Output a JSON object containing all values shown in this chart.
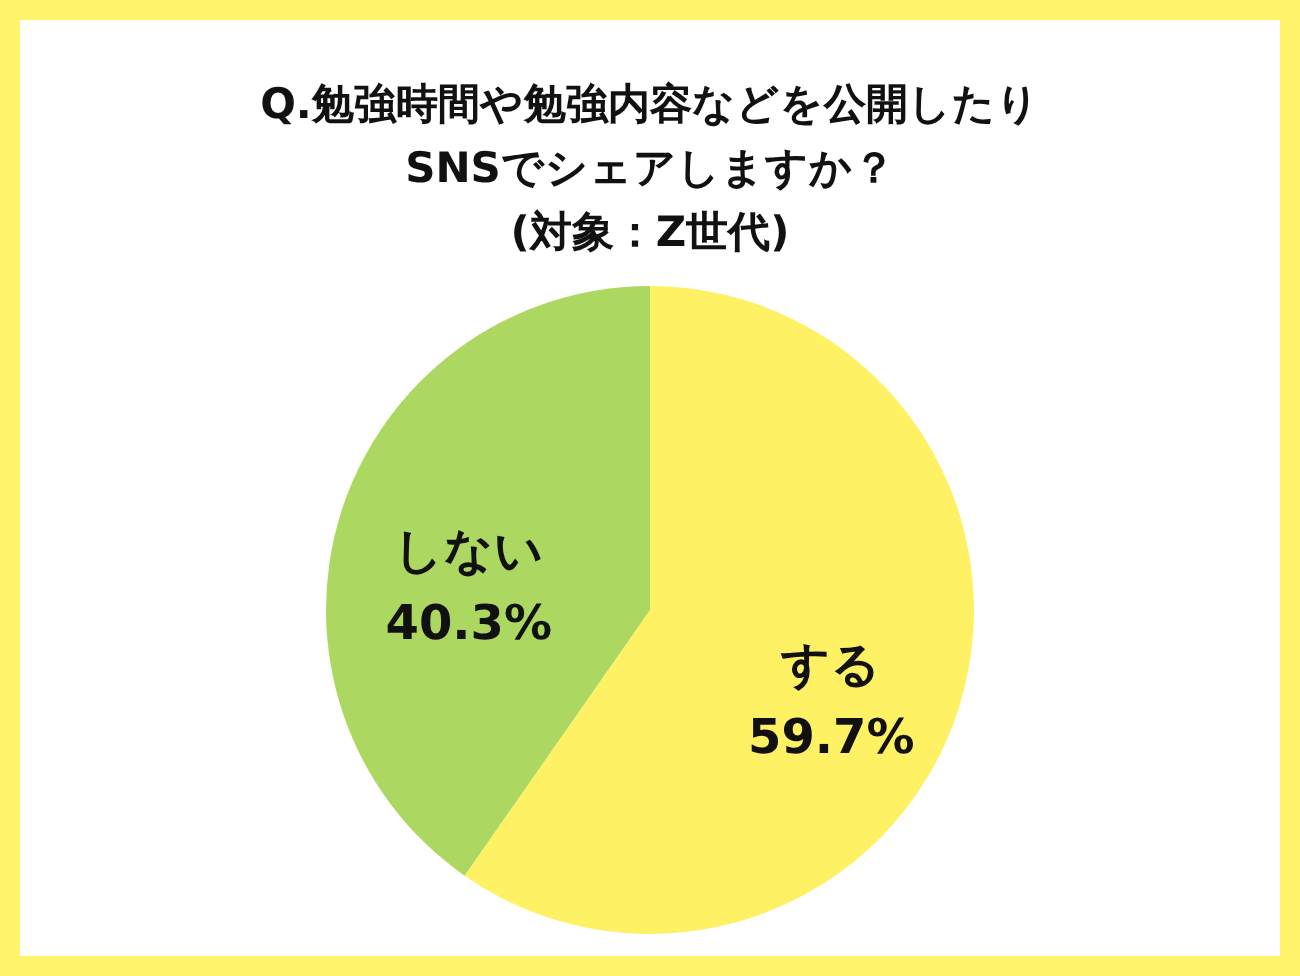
{
  "chart_data": {
    "type": "pie",
    "title": "Q.勉強時間や勉強内容などを公開したり\nSNSでシェアしますか？\n(対象：Z世代)",
    "categories": [
      "する",
      "しない"
    ],
    "values": [
      59.7,
      40.3
    ],
    "colors": [
      "#fef264",
      "#acd862"
    ],
    "value_labels": [
      "59.7%",
      "40.3%"
    ],
    "legend": false
  }
}
